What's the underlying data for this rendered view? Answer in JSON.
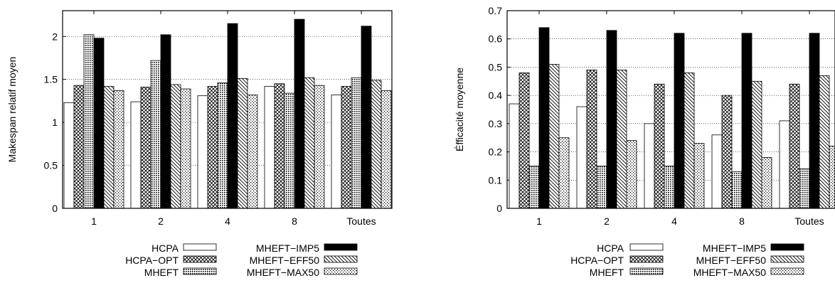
{
  "chart_data": [
    {
      "type": "bar",
      "ylabel": "Makespan relatif moyen",
      "xlabel": "",
      "categories": [
        "1",
        "2",
        "4",
        "8",
        "Toutes"
      ],
      "ylim": [
        0,
        2.3
      ],
      "yticks": [
        "0",
        "0.5",
        "1",
        "1.5",
        "2"
      ],
      "ytick_values": [
        0,
        0.5,
        1,
        1.5,
        2
      ],
      "grid": true,
      "legend_placement": "bottom",
      "series": [
        {
          "name": "HCPA",
          "pattern": "empty",
          "values": [
            1.23,
            1.24,
            1.31,
            1.42,
            1.32
          ]
        },
        {
          "name": "HCPA−OPT",
          "pattern": "crosshatch",
          "values": [
            1.43,
            1.41,
            1.42,
            1.45,
            1.42
          ]
        },
        {
          "name": "MHEFT",
          "pattern": "dense-dots",
          "values": [
            2.02,
            1.72,
            1.46,
            1.34,
            1.52
          ]
        },
        {
          "name": "MHEFT−IMP5",
          "pattern": "solid",
          "values": [
            1.98,
            2.02,
            2.15,
            2.2,
            2.12
          ]
        },
        {
          "name": "MHEFT−EFF50",
          "pattern": "diagonal",
          "values": [
            1.42,
            1.44,
            1.51,
            1.52,
            1.49
          ]
        },
        {
          "name": "MHEFT−MAX50",
          "pattern": "sparse-dots",
          "values": [
            1.37,
            1.39,
            1.32,
            1.43,
            1.37
          ]
        }
      ]
    },
    {
      "type": "bar",
      "ylabel": "Éfficacité moyenne",
      "xlabel": "",
      "categories": [
        "1",
        "2",
        "4",
        "8",
        "Toutes"
      ],
      "ylim": [
        0,
        0.7
      ],
      "yticks": [
        "0",
        "0.1",
        "0.2",
        "0.3",
        "0.4",
        "0.5",
        "0.6",
        "0.7"
      ],
      "ytick_values": [
        0,
        0.1,
        0.2,
        0.3,
        0.4,
        0.5,
        0.6,
        0.7
      ],
      "grid": true,
      "legend_placement": "bottom",
      "series": [
        {
          "name": "HCPA",
          "pattern": "empty",
          "values": [
            0.37,
            0.36,
            0.3,
            0.26,
            0.31
          ]
        },
        {
          "name": "HCPA−OPT",
          "pattern": "crosshatch",
          "values": [
            0.48,
            0.49,
            0.44,
            0.4,
            0.44
          ]
        },
        {
          "name": "MHEFT",
          "pattern": "dense-dots",
          "values": [
            0.15,
            0.15,
            0.15,
            0.13,
            0.14
          ]
        },
        {
          "name": "MHEFT−IMP5",
          "pattern": "solid",
          "values": [
            0.64,
            0.63,
            0.62,
            0.62,
            0.62
          ]
        },
        {
          "name": "MHEFT−EFF50",
          "pattern": "diagonal",
          "values": [
            0.51,
            0.49,
            0.48,
            0.45,
            0.47
          ]
        },
        {
          "name": "MHEFT−MAX50",
          "pattern": "sparse-dots",
          "values": [
            0.25,
            0.24,
            0.23,
            0.18,
            0.22
          ]
        }
      ]
    }
  ]
}
